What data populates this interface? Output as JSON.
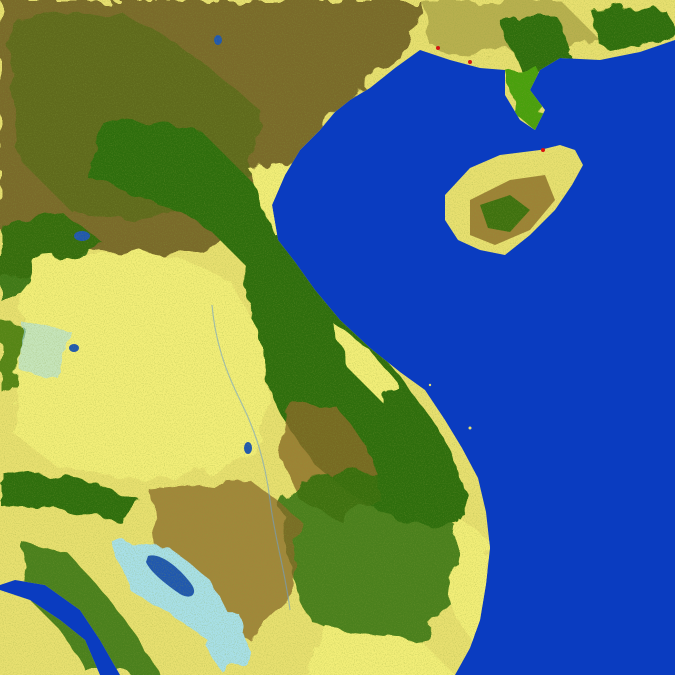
{
  "map": {
    "type": "land-cover classification raster",
    "colors": {
      "water": "#0a3cc0",
      "cropland": "#f2ee78",
      "forest": "#2e6e08",
      "shrub": "#8a6a28",
      "mixed": "#b8b050",
      "wetland": "#a8e0e8",
      "urban": "#d81010",
      "broadleaf": "#4aa010"
    }
  }
}
